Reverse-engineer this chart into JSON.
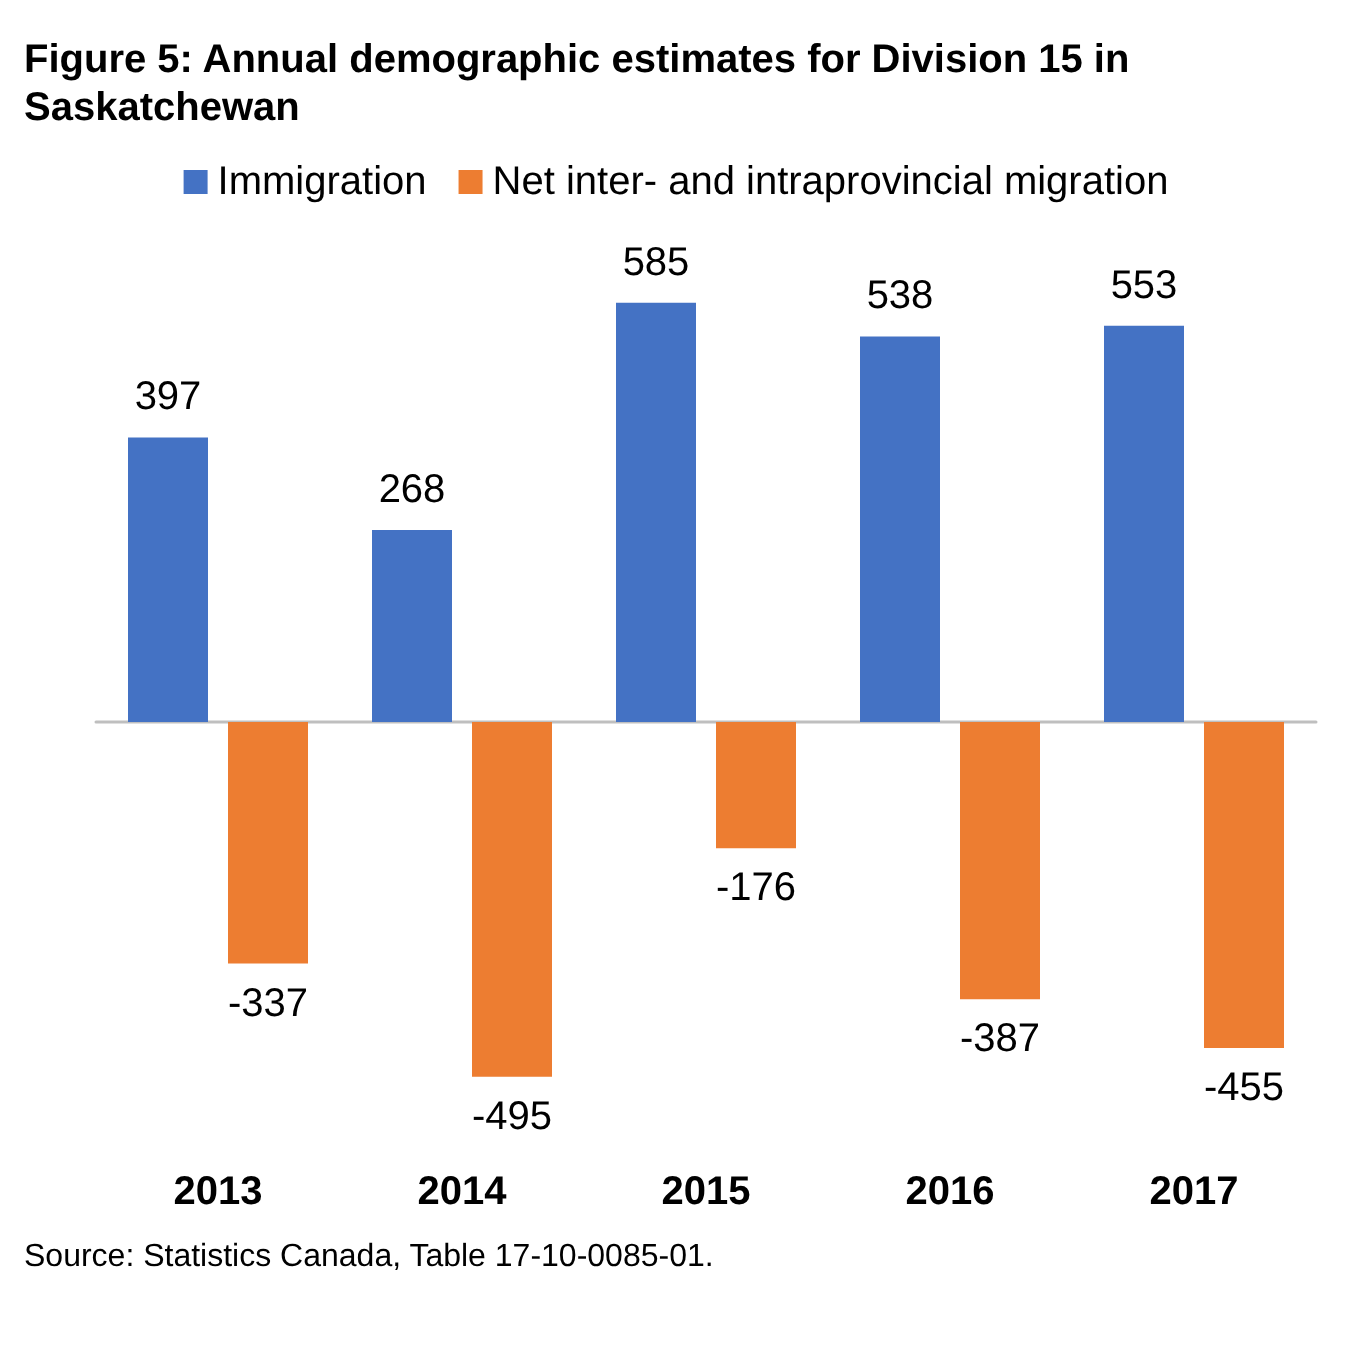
{
  "chart_data": {
    "type": "bar",
    "title": "Figure 5: Annual demographic estimates for Division 15 in Saskatchewan",
    "categories": [
      "2013",
      "2014",
      "2015",
      "2016",
      "2017"
    ],
    "series": [
      {
        "name": "Immigration",
        "color": "#4472c4",
        "values": [
          397,
          268,
          585,
          538,
          553
        ]
      },
      {
        "name": "Net inter- and intraprovincial migration",
        "color": "#ed7d31",
        "values": [
          -337,
          -495,
          -176,
          -387,
          -455
        ]
      }
    ],
    "data_labels": true,
    "legend": "top",
    "grid": false,
    "annotations": [
      "Source: Statistics Canada, Table 17-10-0085-01."
    ]
  }
}
